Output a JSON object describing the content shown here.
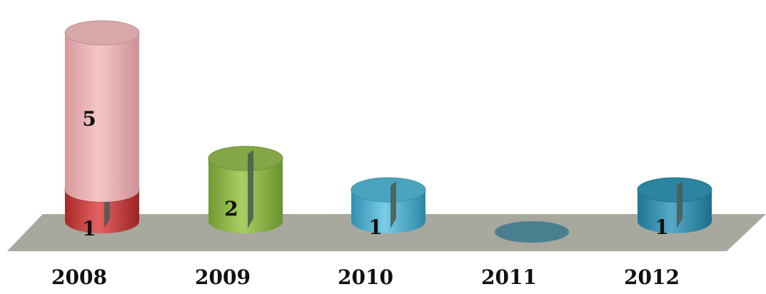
{
  "chart_data": {
    "type": "bar",
    "style": "3d-cylinder-stacked",
    "categories": [
      "2008",
      "2009",
      "2010",
      "2011",
      "2012"
    ],
    "segments": [
      {
        "category": "2008",
        "value": 1,
        "color": "#d04848"
      },
      {
        "category": "2008",
        "value": 5,
        "color": "#ebb5b8"
      },
      {
        "category": "2009",
        "value": 2,
        "color": "#8db64a"
      },
      {
        "category": "2010",
        "value": 1,
        "color": "#4fb3cf"
      },
      {
        "category": "2011",
        "value": 0,
        "color": "#4a7f90"
      },
      {
        "category": "2012",
        "value": 1,
        "color": "#2f8fae"
      }
    ],
    "totals": [
      6,
      2,
      1,
      0,
      1
    ],
    "data_labels": [
      "1",
      "5",
      "2",
      "1",
      "1"
    ],
    "floor_color": "#a8a89e",
    "grid": false,
    "legend": "none"
  }
}
